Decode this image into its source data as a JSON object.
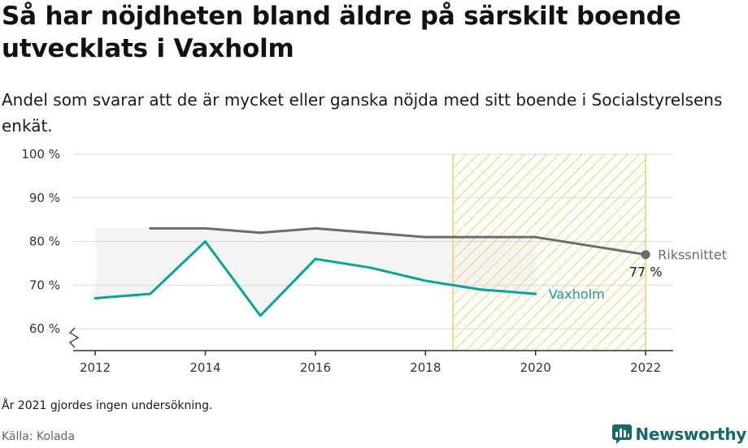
{
  "header": {
    "title": "Så har nöjdheten bland äldre på särskilt boende utvecklats i Vaxholm",
    "subtitle": "Andel som svarar att de är mycket eller ganska nöjda med sitt boende i Socialstyrelsens enkät."
  },
  "footer": {
    "note": "År 2021 gjordes ingen undersökning.",
    "source": "Källa: Kolada",
    "brand": "Newsworthy"
  },
  "colors": {
    "riket": "#6d6a73",
    "vaxholm": "#0aa39a",
    "hatch": "#f5cf6a",
    "grid": "#d9d9d9",
    "band": "#f4f4f4",
    "brand": "#0f6b6d"
  },
  "chart_data": {
    "type": "line",
    "title": "Så har nöjdheten bland äldre på särskilt boende utvecklats i Vaxholm",
    "ylim": [
      55,
      100
    ],
    "xlim": [
      2011.6,
      2022.5
    ],
    "yticks": [
      60,
      70,
      80,
      90,
      100
    ],
    "ytick_labels": [
      "60 %",
      "70 %",
      "80 %",
      "90 %",
      "100 %"
    ],
    "xticks": [
      2012,
      2014,
      2016,
      2018,
      2020,
      2022
    ],
    "xtick_labels": [
      "2012",
      "2014",
      "2016",
      "2018",
      "2020",
      "2022"
    ],
    "grid": true,
    "shaded_period": [
      2018.5,
      2022
    ],
    "series": [
      {
        "name": "Rikssnittet",
        "x": [
          2013,
          2014,
          2015,
          2016,
          2017,
          2018,
          2019,
          2020,
          2022
        ],
        "values": [
          83,
          83,
          82,
          83,
          82,
          81,
          81,
          81,
          77
        ],
        "end_value_label": "77 %"
      },
      {
        "name": "Vaxholm",
        "x": [
          2012,
          2013,
          2014,
          2015,
          2016,
          2017,
          2018,
          2019,
          2020
        ],
        "values": [
          67,
          68,
          80,
          63,
          76,
          74,
          71,
          69,
          68
        ]
      }
    ]
  }
}
